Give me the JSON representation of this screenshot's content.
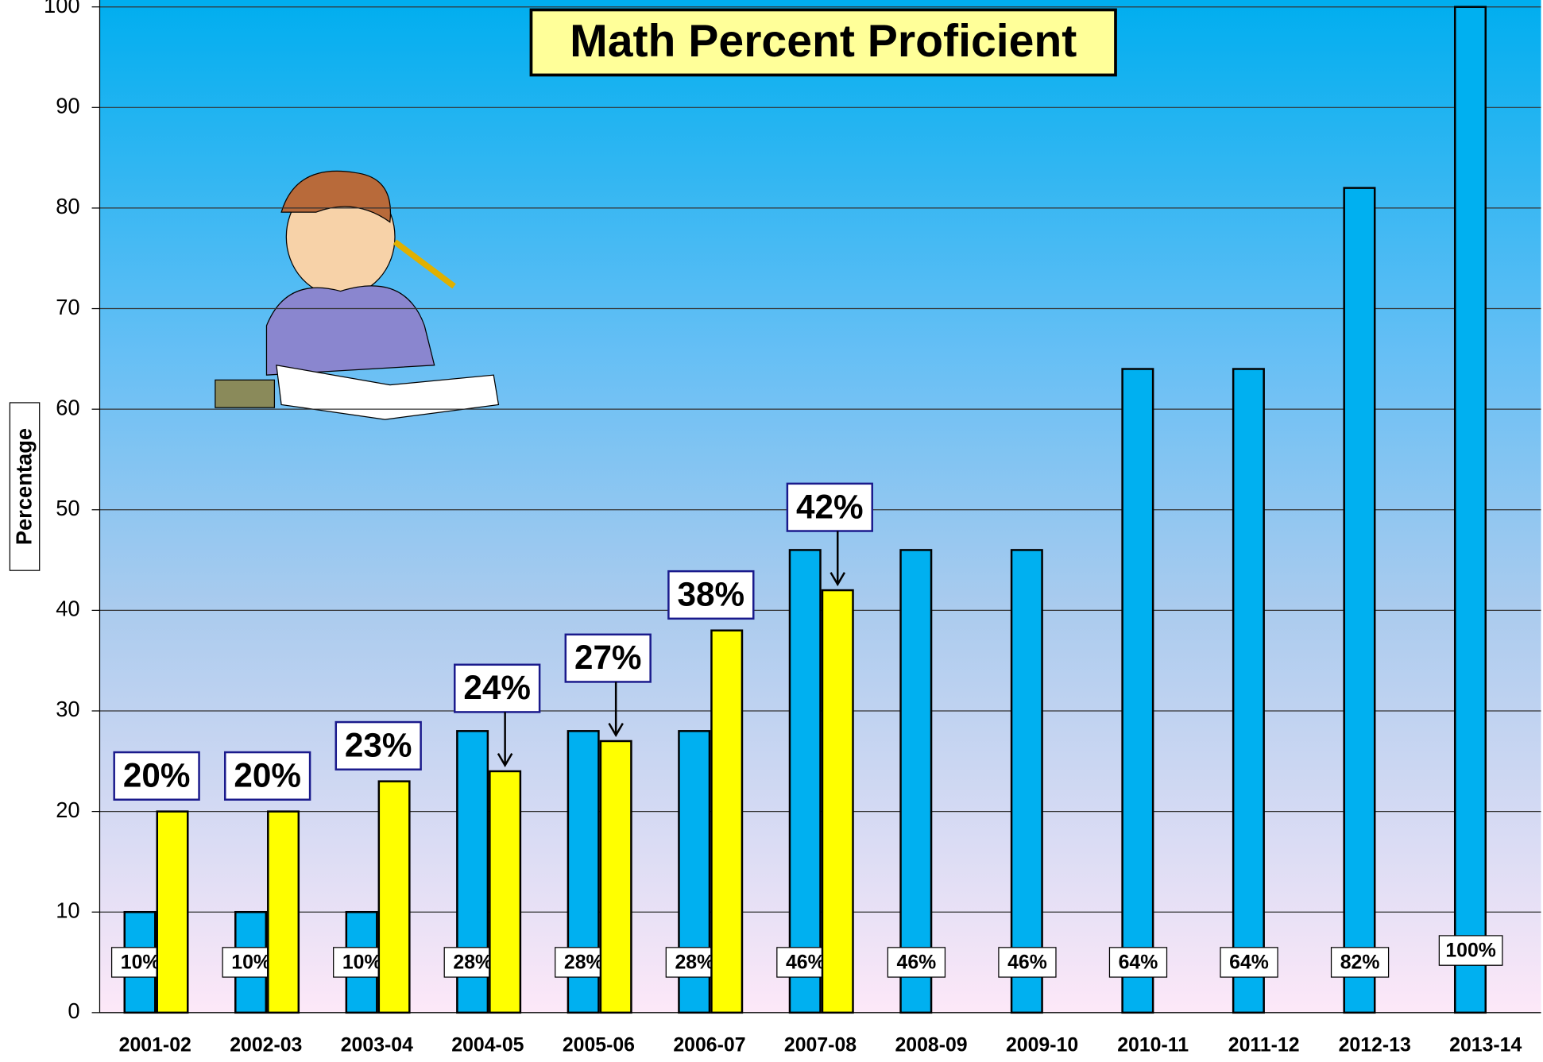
{
  "chart_data": {
    "type": "bar",
    "title": "Math Percent Proficient",
    "y_label": "Percentage",
    "categories": [
      "2001-02",
      "2002-03",
      "2003-04",
      "2004-05",
      "2005-06",
      "2006-07",
      "2007-08",
      "2008-09",
      "2009-10",
      "2010-11",
      "2011-12",
      "2012-13",
      "2013-14"
    ],
    "series": [
      {
        "color": "#00b0f0",
        "values": [
          10,
          10,
          10,
          28,
          28,
          28,
          46,
          46,
          46,
          64,
          64,
          82,
          100
        ],
        "value_labels": [
          "10%",
          "10%",
          "10%",
          "28%",
          "28%",
          "28%",
          "46%",
          "46%",
          "46%",
          "64%",
          "64%",
          "82%",
          "100%"
        ]
      },
      {
        "color": "#ffff00",
        "values": [
          20,
          20,
          23,
          24,
          27,
          38,
          42,
          null,
          null,
          null,
          null,
          null,
          null
        ],
        "value_labels": [
          "20%",
          "20%",
          "23%",
          "24%",
          "27%",
          "38%",
          "42%",
          null,
          null,
          null,
          null,
          null,
          null
        ]
      }
    ],
    "ylim": [
      0,
      100
    ],
    "yticks": [
      0,
      10,
      20,
      30,
      40,
      50,
      60,
      70,
      80,
      90,
      100
    ],
    "grid": true
  }
}
